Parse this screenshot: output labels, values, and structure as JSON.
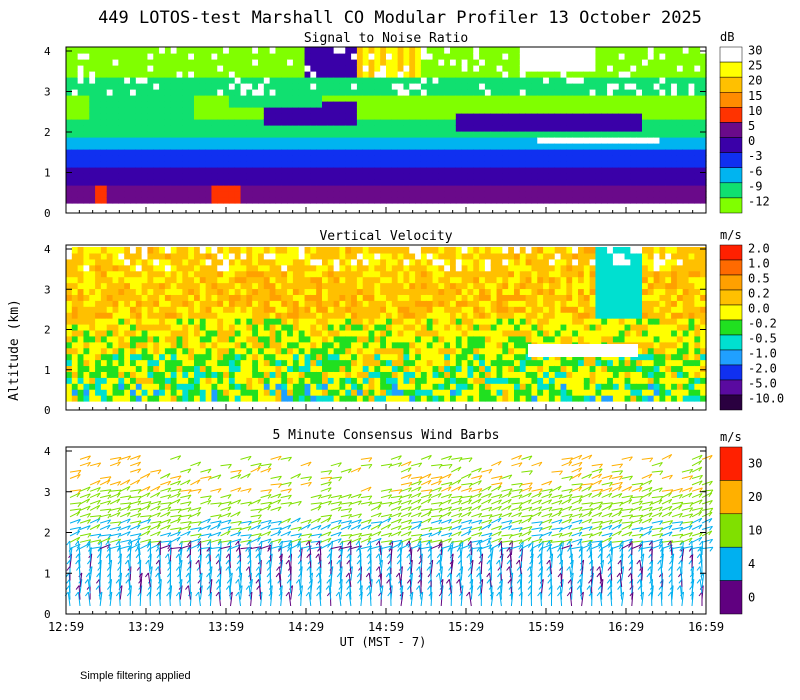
{
  "title": "449 LOTOS-test Marshall CO Modular Profiler 13 October 2025",
  "yaxis_label": "Altitude (km)",
  "footer_note": "Simple filtering applied",
  "chart_data": [
    {
      "type": "heatmap",
      "title": "Signal to Noise Ratio",
      "unit": "dB",
      "y_ticks": [
        "0",
        "1",
        "2",
        "3",
        "4"
      ],
      "ylim": [
        0,
        4
      ],
      "colorbar": [
        {
          "label": "30",
          "color": "#ffffff"
        },
        {
          "label": "25",
          "color": "#ffff00"
        },
        {
          "label": "20",
          "color": "#ffc000"
        },
        {
          "label": "15",
          "color": "#ff8c00"
        },
        {
          "label": "10",
          "color": "#ff3300"
        },
        {
          "label": "5",
          "color": "#6a0a8a"
        },
        {
          "label": "0",
          "color": "#3a00a8"
        },
        {
          "label": "-3",
          "color": "#1030f0"
        },
        {
          "label": "-6",
          "color": "#00b4f0"
        },
        {
          "label": "-9",
          "color": "#10e070"
        },
        {
          "label": "-12",
          "color": "#80ff00"
        }
      ]
    },
    {
      "type": "heatmap",
      "title": "Vertical Velocity",
      "unit": "m/s",
      "y_ticks": [
        "0",
        "1",
        "2",
        "3",
        "4"
      ],
      "ylim": [
        0,
        4
      ],
      "colorbar": [
        {
          "label": "2.0",
          "color": "#ff2000"
        },
        {
          "label": "1.0",
          "color": "#ff6a00"
        },
        {
          "label": "0.5",
          "color": "#ffa000"
        },
        {
          "label": "0.2",
          "color": "#ffc000"
        },
        {
          "label": "0.0",
          "color": "#ffff00"
        },
        {
          "label": "-0.2",
          "color": "#20e020"
        },
        {
          "label": "-0.5",
          "color": "#00e0d0"
        },
        {
          "label": "-1.0",
          "color": "#20a0ff"
        },
        {
          "label": "-2.0",
          "color": "#1030f0"
        },
        {
          "label": "-5.0",
          "color": "#5a0aa0"
        },
        {
          "label": "-10.0",
          "color": "#2a0040"
        }
      ]
    },
    {
      "type": "scatter",
      "title": "5 Minute Consensus Wind Barbs",
      "unit": "m/s",
      "y_ticks": [
        "0",
        "1",
        "2",
        "3",
        "4"
      ],
      "ylim": [
        0,
        4
      ],
      "colorbar": [
        {
          "label": "30",
          "color": "#ff2000"
        },
        {
          "label": "20",
          "color": "#ffb000"
        },
        {
          "label": "10",
          "color": "#80e000"
        },
        {
          "label": "4",
          "color": "#00b0f0"
        },
        {
          "label": "0",
          "color": "#600080"
        }
      ],
      "x_ticks": [
        "12:59",
        "13:29",
        "13:59",
        "14:29",
        "14:59",
        "15:29",
        "15:59",
        "16:29",
        "16:59"
      ],
      "xlabel": "UT  (MST - 7)"
    }
  ]
}
